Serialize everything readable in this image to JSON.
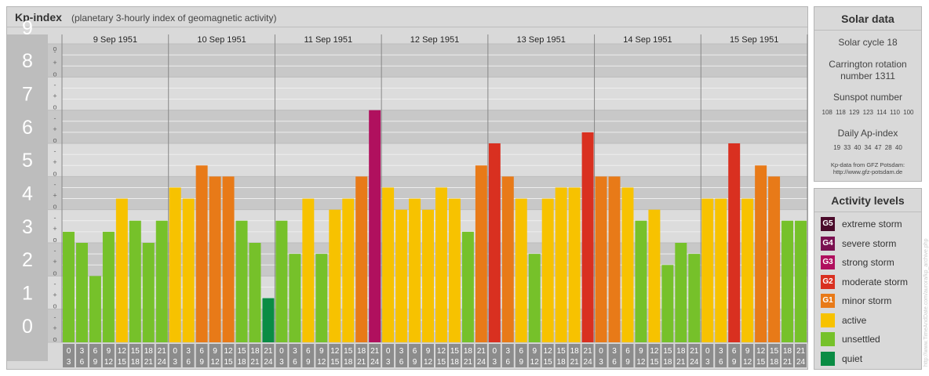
{
  "title": {
    "main": "Kp-index",
    "subtitle": "(planetary 3-hourly index of geomagnetic activity)"
  },
  "chart_data": {
    "type": "bar",
    "ylim": [
      0,
      9
    ],
    "y_ticks": [
      "0",
      "1",
      "2",
      "3",
      "4",
      "5",
      "6",
      "7",
      "8",
      "9"
    ],
    "minor_tick_labels": [
      "o",
      "+",
      "-"
    ],
    "days": [
      "9 Sep 1951",
      "10 Sep 1951",
      "11 Sep 1951",
      "12 Sep 1951",
      "13 Sep 1951",
      "14 Sep 1951",
      "15 Sep 1951"
    ],
    "interval_top": [
      "0",
      "3",
      "6",
      "9",
      "12",
      "15",
      "18",
      "21"
    ],
    "interval_bottom": [
      "3",
      "6",
      "9",
      "12",
      "15",
      "18",
      "21",
      "24"
    ],
    "values": [
      [
        3.333,
        3.0,
        2.0,
        3.333,
        4.333,
        3.667,
        3.0,
        3.667
      ],
      [
        4.667,
        4.333,
        5.333,
        5.0,
        5.0,
        3.667,
        3.0,
        1.333
      ],
      [
        3.667,
        2.667,
        4.333,
        2.667,
        4.0,
        4.333,
        5.0,
        7.0
      ],
      [
        4.667,
        4.0,
        4.333,
        4.0,
        4.667,
        4.333,
        3.333,
        5.333
      ],
      [
        6.0,
        5.0,
        4.333,
        2.667,
        4.333,
        4.667,
        4.667,
        6.333
      ],
      [
        5.0,
        5.0,
        4.667,
        3.667,
        4.0,
        2.333,
        3.0,
        2.667
      ],
      [
        4.333,
        4.333,
        6.0,
        4.333,
        5.333,
        5.0,
        3.667,
        3.667
      ]
    ]
  },
  "solar": {
    "title": "Solar data",
    "cycle": "Solar cycle 18",
    "carrington_l1": "Carrington rotation",
    "carrington_l2": "number 1311",
    "sunspot_label": "Sunspot number",
    "sunspot_values": "108 118 129 123 114 110 100",
    "ap_label": "Daily Ap-index",
    "ap_values": "19 33 40 34 47 28 40",
    "source_l1": "Kp-data from GFZ Potsdam:",
    "source_l2": "http://www.gfz-potsdam.de"
  },
  "activity": {
    "title": "Activity levels",
    "levels": [
      {
        "code": "G5",
        "label": "extreme storm",
        "color": "#4a0a2a"
      },
      {
        "code": "G4",
        "label": "severe storm",
        "color": "#7a1050"
      },
      {
        "code": "G3",
        "label": "strong storm",
        "color": "#b0105e"
      },
      {
        "code": "G2",
        "label": "moderate storm",
        "color": "#d93020"
      },
      {
        "code": "G1",
        "label": "minor storm",
        "color": "#e87a18"
      },
      {
        "code": "",
        "label": "active",
        "color": "#f7c200"
      },
      {
        "code": "",
        "label": "unsettled",
        "color": "#76c12a"
      },
      {
        "code": "",
        "label": "quiet",
        "color": "#0a8c44"
      }
    ]
  },
  "watermark": "http://www.TimeAndDate.com/aurora/kp_archive.php"
}
